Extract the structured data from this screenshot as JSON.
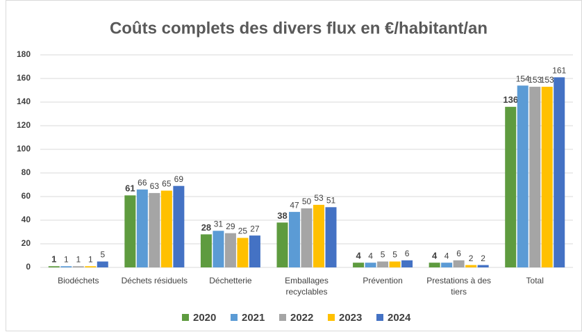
{
  "chart_data": {
    "type": "bar",
    "title": "Coûts complets des divers flux en €/habitant/an",
    "categories": [
      "Biodéchets",
      "Déchets résiduels",
      "Déchetterie",
      "Emballages recyclables",
      "Prévention",
      "Prestations à des tiers",
      "Total"
    ],
    "series": [
      {
        "name": "2020",
        "color": "#5e9b3f",
        "values": [
          1,
          61,
          28,
          38,
          4,
          4,
          136
        ]
      },
      {
        "name": "2021",
        "color": "#5b9bd5",
        "values": [
          1,
          66,
          31,
          47,
          4,
          4,
          154
        ]
      },
      {
        "name": "2022",
        "color": "#a5a5a5",
        "values": [
          1,
          63,
          29,
          50,
          5,
          6,
          153
        ]
      },
      {
        "name": "2023",
        "color": "#ffc000",
        "values": [
          1,
          65,
          25,
          53,
          5,
          2,
          153
        ]
      },
      {
        "name": "2024",
        "color": "#4472c4",
        "values": [
          5,
          69,
          27,
          51,
          6,
          2,
          161
        ]
      }
    ],
    "ylim": [
      0,
      180
    ],
    "yticks": [
      0,
      20,
      40,
      60,
      80,
      100,
      120,
      140,
      160,
      180
    ],
    "grid": true,
    "legend": "bottom"
  }
}
